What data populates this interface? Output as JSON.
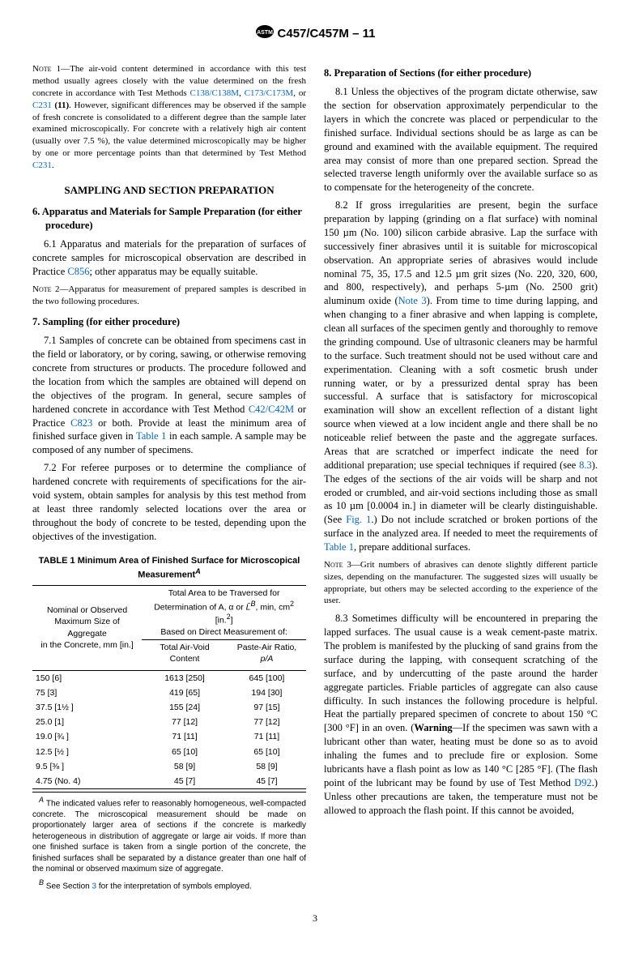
{
  "header": {
    "standard": "C457/C457M – 11"
  },
  "left": {
    "note1": "The air-void content determined in accordance with this test method usually agrees closely with the value determined on the fresh concrete in accordance with Test Methods ",
    "note1_refs": [
      "C138/C138M",
      "C173/C173M",
      "C231"
    ],
    "note1_bold_ref": "(11)",
    "note1_cont": ". However, significant differences may be observed if the sample of fresh concrete is consolidated to a different degree than the sample later examined microscopically. For concrete with a relatively high air content (usually over 7.5 %), the value determined microscopically may be higher by one or more percentage points than that determined by Test Method ",
    "banner": "SAMPLING AND SECTION PREPARATION",
    "h6": "6. Apparatus and Materials for Sample Preparation (for either procedure)",
    "p6_1": "6.1 Apparatus and materials for the preparation of surfaces of concrete samples for microscopical observation are described in Practice ",
    "p6_1_ref": "C856",
    "p6_1_cont": "; other apparatus may be equally suitable.",
    "note2": "Apparatus for measurement of prepared samples is described in the two following procedures.",
    "h7": "7. Sampling (for either procedure)",
    "p7_1a": "7.1 Samples of concrete can be obtained from specimens cast in the field or laboratory, or by coring, sawing, or otherwise removing concrete from structures or products. The procedure followed and the location from which the samples are obtained will depend on the objectives of the program. In general, secure samples of hardened concrete in accordance with Test Method ",
    "p7_1_ref1": "C42/C42M",
    "p7_1_mid": " or Practice ",
    "p7_1_ref2": "C823",
    "p7_1b": " or both. Provide at least the minimum area of finished surface given in ",
    "p7_1_ref3": "Table 1",
    "p7_1c": " in each sample. A sample may be composed of any number of specimens.",
    "p7_2": "7.2 For referee purposes or to determine the compliance of hardened concrete with requirements of specifications for the air-void system, obtain samples for analysis by this test method from at least three randomly selected locations over the area or throughout the body of concrete to be tested, depending upon the objectives of the investigation.",
    "table": {
      "caption": "TABLE 1 Minimum Area of Finished Surface for Microscopical Measurement",
      "supA": "A",
      "col1_head_l1": "Nominal or Observed",
      "col1_head_l2": "Maximum Size of Aggregate",
      "col1_head_l3": "in the Concrete, mm [in.]",
      "col2_head_l1": "Total Area to be Traversed for",
      "col2_head_l2_a": "Determination of A, ",
      "col2_head_l2_b": " or ",
      "col2_head_l2_c": ", min, cm",
      "col2_head_l3": "[in.",
      "col2_head_l4": "Based on Direct Measurement of:",
      "sub1": "Total Air-Void Content",
      "sub2_a": "Paste-Air Ratio, ",
      "sub2_b": "p/A",
      "rows": [
        [
          "150 [6]",
          "1613 [250]",
          "645 [100]"
        ],
        [
          "75 [3]",
          "419 [65]",
          "194 [30]"
        ],
        [
          "37.5 [1½ ]",
          "155 [24]",
          "97 [15]"
        ],
        [
          "25.0 [1]",
          "77 [12]",
          "77 [12]"
        ],
        [
          "19.0 [¾ ]",
          "71 [11]",
          "71 [11]"
        ],
        [
          "12.5 [½ ]",
          "65 [10]",
          "65 [10]"
        ],
        [
          "9.5 [⅜ ]",
          "58 [9]",
          "58 [9]"
        ],
        [
          "4.75 (No. 4)",
          "45 [7]",
          "45 [7]"
        ]
      ],
      "noteA": " The indicated values refer to reasonably homogeneous, well-compacted concrete. The microscopical measurement should be made on proportionately larger area of sections if the concrete is markedly heterogeneous in distribution of aggregate or large air voids. If more than one finished surface is taken from a single portion of the concrete, the finished surfaces shall be separated by a distance greater than one half of the nominal or observed maximum size of aggregate.",
      "noteB_a": " See Section ",
      "noteB_ref": "3",
      "noteB_b": " for the interpretation of symbols employed."
    }
  },
  "right": {
    "h8": "8. Preparation of Sections (for either procedure)",
    "p8_1": "8.1 Unless the objectives of the program dictate otherwise, saw the section for observation approximately perpendicular to the layers in which the concrete was placed or perpendicular to the finished surface. Individual sections should be as large as can be ground and examined with the available equipment. The required area may consist of more than one prepared section. Spread the selected traverse length uniformly over the available surface so as to compensate for the heterogeneity of the concrete.",
    "p8_2a": "8.2 If gross irregularities are present, begin the surface preparation by lapping (grinding on a flat surface) with nominal 150 µm (No. 100) silicon carbide abrasive. Lap the surface with successively finer abrasives until it is suitable for microscopical observation. An appropriate series of abrasives would include nominal 75, 35, 17.5 and 12.5 µm grit sizes (No. 220, 320, 600, and 800, respectively), and perhaps 5-µm (No. 2500 grit) aluminum oxide (",
    "p8_2_ref1": "Note 3",
    "p8_2b": "). From time to time during lapping, and when changing to a finer abrasive and when lapping is complete, clean all surfaces of the specimen gently and thoroughly to remove the grinding compound. Use of ultrasonic cleaners may be harmful to the surface. Such treatment should not be used without care and experimentation. Cleaning with a soft cosmetic brush under running water, or by a pressurized dental spray has been successful. A surface that is satisfactory for microscopical examination will show an excellent reflection of a distant light source when viewed at a low incident angle and there shall be no noticeable relief between the paste and the aggregate surfaces. Areas that are scratched or imperfect indicate the need for additional preparation; use special techniques if required (see ",
    "p8_2_ref2": "8.3",
    "p8_2c": "). The edges of the sections of the air voids will be sharp and not eroded or crumbled, and air-void sections including those as small as 10 µm [0.0004 in.] in diameter will be clearly distinguishable. (See ",
    "p8_2_ref3": "Fig. 1",
    "p8_2d": ".) Do not include scratched or broken portions of the surface in the analyzed area. If needed to meet the requirements of ",
    "p8_2_ref4": "Table 1",
    "p8_2e": ", prepare additional surfaces.",
    "note3": "Grit numbers of abrasives can denote slightly different particle sizes, depending on the manufacturer. The suggested sizes will usually be appropriate, but others may be selected according to the experience of the user.",
    "p8_3a": "8.3 Sometimes difficulty will be encountered in preparing the lapped surfaces. The usual cause is a weak cement-paste matrix. The problem is manifested by the plucking of sand grains from the surface during the lapping, with consequent scratching of the surface, and by undercutting of the paste around the harder aggregate particles. Friable particles of aggregate can also cause difficulty. In such instances the following procedure is helpful. Heat the partially prepared specimen of concrete to about 150 °C [300 °F] in an oven. (",
    "p8_3_warn": "Warning",
    "p8_3b": "—If the specimen was sawn with a lubricant other than water, heating must be done so as to avoid inhaling the fumes and to preclude fire or explosion. Some lubricants have a flash point as low as 140 °C [285 °F]. (The flash point of the lubricant may be found by use of Test Method ",
    "p8_3_ref": "D92",
    "p8_3c": ".) Unless other precautions are taken, the temperature must not be allowed to approach the flash point. If this cannot be avoided,"
  },
  "pagenum": "3"
}
